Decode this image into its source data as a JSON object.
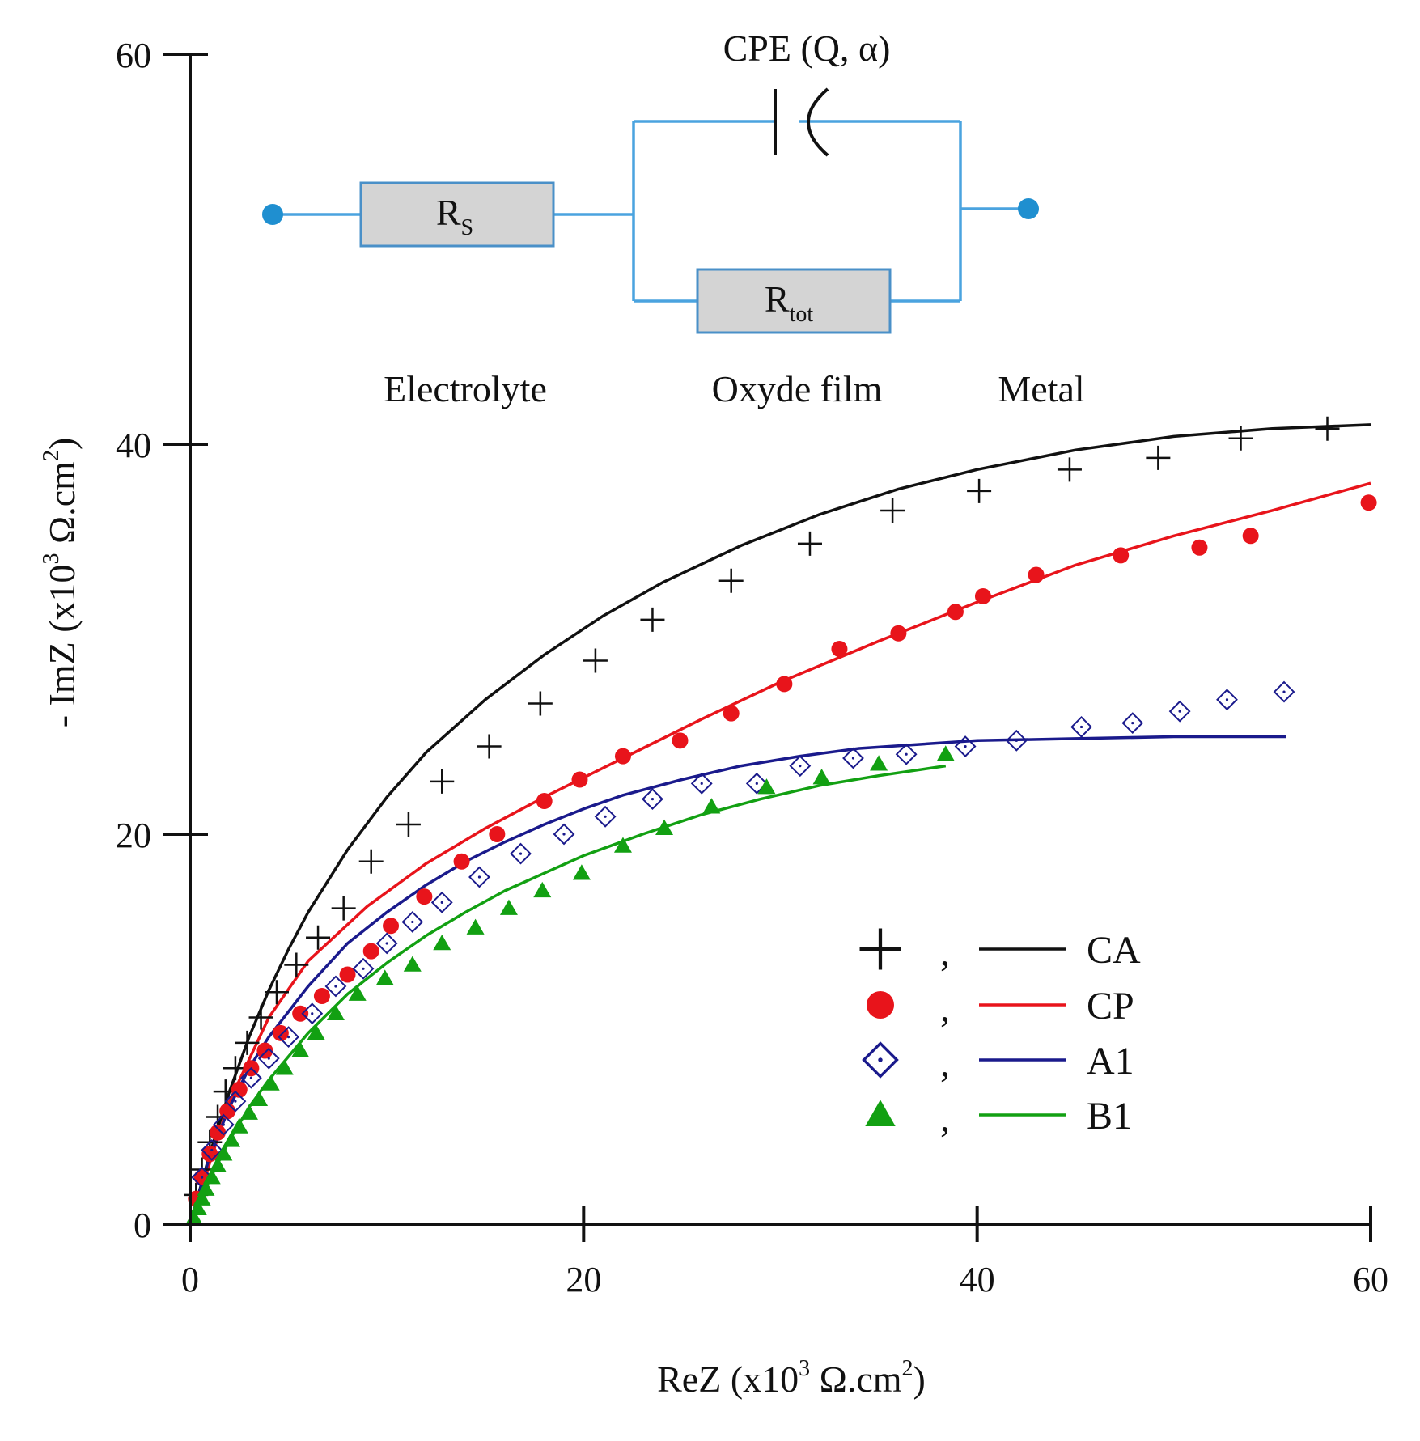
{
  "chart_data": {
    "type": "scatter",
    "title": "",
    "xlabel": "ReZ (x10^3 Ω.cm^2)",
    "ylabel": "- ImZ (x10^3 Ω.cm^2)",
    "xlabel_parts": {
      "pre": "ReZ (x10",
      "exp1": "3",
      "mid": " Ω.cm",
      "exp2": "2",
      "post": ")"
    },
    "ylabel_parts": {
      "pre": "- ImZ (x10",
      "exp1": "3",
      "mid": " Ω.cm",
      "exp2": "2",
      "post": ")"
    },
    "xlim": [
      0,
      60
    ],
    "ylim": [
      0,
      60
    ],
    "xticks": [
      0,
      20,
      40,
      60
    ],
    "yticks": [
      0,
      20,
      40,
      60
    ],
    "xtick_labels": [
      "0",
      "20",
      "40",
      "60"
    ],
    "ytick_labels": [
      "0",
      "20",
      "40",
      "60"
    ],
    "legend_position": "bottom-right",
    "legend_separator": ",",
    "series": [
      {
        "name": "CA",
        "marker": "plus",
        "color": "#111111",
        "points": [
          [
            0.3,
            1.5
          ],
          [
            0.6,
            2.8
          ],
          [
            1.0,
            4.2
          ],
          [
            1.4,
            5.5
          ],
          [
            1.8,
            6.8
          ],
          [
            2.3,
            8.0
          ],
          [
            2.9,
            9.3
          ],
          [
            3.6,
            10.6
          ],
          [
            4.4,
            11.9
          ],
          [
            5.4,
            13.3
          ],
          [
            6.5,
            14.7
          ],
          [
            7.8,
            16.2
          ],
          [
            9.2,
            18.6
          ],
          [
            11.1,
            20.5
          ],
          [
            12.8,
            22.7
          ],
          [
            15.2,
            24.5
          ],
          [
            17.8,
            26.7
          ],
          [
            20.6,
            28.9
          ],
          [
            23.5,
            31.0
          ],
          [
            27.5,
            33.0
          ],
          [
            31.5,
            34.9
          ],
          [
            35.7,
            36.6
          ],
          [
            40.1,
            37.6
          ],
          [
            44.7,
            38.7
          ],
          [
            49.2,
            39.3
          ],
          [
            53.4,
            40.3
          ],
          [
            57.8,
            40.8
          ]
        ],
        "fit": [
          [
            0,
            0
          ],
          [
            1,
            3.6
          ],
          [
            2,
            6.8
          ],
          [
            3,
            9.6
          ],
          [
            4,
            12.0
          ],
          [
            5,
            14.1
          ],
          [
            6,
            16.0
          ],
          [
            8,
            19.2
          ],
          [
            10,
            21.9
          ],
          [
            12,
            24.2
          ],
          [
            15,
            26.9
          ],
          [
            18,
            29.2
          ],
          [
            21,
            31.2
          ],
          [
            24,
            32.9
          ],
          [
            28,
            34.8
          ],
          [
            32,
            36.4
          ],
          [
            36,
            37.7
          ],
          [
            40,
            38.7
          ],
          [
            45,
            39.7
          ],
          [
            50,
            40.4
          ],
          [
            55,
            40.8
          ],
          [
            60,
            41.0
          ]
        ]
      },
      {
        "name": "CP",
        "marker": "circle",
        "color": "#e8141b",
        "points": [
          [
            0.3,
            1.3
          ],
          [
            0.6,
            2.4
          ],
          [
            1.0,
            3.6
          ],
          [
            1.4,
            4.7
          ],
          [
            1.9,
            5.8
          ],
          [
            2.5,
            6.9
          ],
          [
            3.1,
            8.0
          ],
          [
            3.8,
            8.9
          ],
          [
            4.6,
            9.8
          ],
          [
            5.6,
            10.8
          ],
          [
            6.7,
            11.7
          ],
          [
            8.0,
            12.8
          ],
          [
            9.2,
            14.0
          ],
          [
            10.2,
            15.3
          ],
          [
            11.9,
            16.8
          ],
          [
            13.8,
            18.6
          ],
          [
            15.6,
            20.0
          ],
          [
            18.0,
            21.7
          ],
          [
            19.8,
            22.8
          ],
          [
            22.0,
            24.0
          ],
          [
            24.9,
            24.8
          ],
          [
            27.5,
            26.2
          ],
          [
            30.2,
            27.7
          ],
          [
            33.0,
            29.5
          ],
          [
            36.0,
            30.3
          ],
          [
            38.9,
            31.4
          ],
          [
            40.3,
            32.2
          ],
          [
            43.0,
            33.3
          ],
          [
            47.3,
            34.3
          ],
          [
            51.3,
            34.7
          ],
          [
            53.9,
            35.3
          ],
          [
            59.9,
            37.0
          ]
        ],
        "fit": [
          [
            0,
            0
          ],
          [
            2,
            6.3
          ],
          [
            4,
            10.6
          ],
          [
            6,
            13.5
          ],
          [
            9,
            16.3
          ],
          [
            12,
            18.5
          ],
          [
            15,
            20.3
          ],
          [
            18,
            21.9
          ],
          [
            22,
            23.9
          ],
          [
            26,
            25.9
          ],
          [
            30,
            27.8
          ],
          [
            35,
            29.9
          ],
          [
            40,
            31.9
          ],
          [
            45,
            33.8
          ],
          [
            50,
            35.3
          ],
          [
            55,
            36.6
          ],
          [
            60,
            38.0
          ]
        ]
      },
      {
        "name": "A1",
        "marker": "diamond",
        "color": "#1a1a8c",
        "points": [
          [
            0.6,
            2.4
          ],
          [
            1.1,
            3.8
          ],
          [
            1.7,
            5.1
          ],
          [
            2.3,
            6.3
          ],
          [
            3.1,
            7.5
          ],
          [
            4.0,
            8.5
          ],
          [
            5.0,
            9.6
          ],
          [
            6.2,
            10.8
          ],
          [
            7.4,
            12.2
          ],
          [
            8.8,
            13.1
          ],
          [
            10.0,
            14.4
          ],
          [
            11.3,
            15.5
          ],
          [
            12.8,
            16.5
          ],
          [
            14.7,
            17.8
          ],
          [
            16.8,
            19.0
          ],
          [
            19.0,
            20.0
          ],
          [
            21.1,
            20.9
          ],
          [
            23.5,
            21.8
          ],
          [
            26.0,
            22.6
          ],
          [
            28.8,
            22.6
          ],
          [
            31.0,
            23.5
          ],
          [
            33.7,
            23.9
          ],
          [
            36.4,
            24.1
          ],
          [
            39.4,
            24.5
          ],
          [
            42.0,
            24.8
          ],
          [
            45.3,
            25.5
          ],
          [
            47.9,
            25.7
          ],
          [
            50.3,
            26.3
          ],
          [
            52.7,
            26.9
          ],
          [
            55.6,
            27.3
          ]
        ],
        "fit": [
          [
            0,
            0
          ],
          [
            1,
            3.5
          ],
          [
            2,
            6.0
          ],
          [
            3,
            8.0
          ],
          [
            4,
            9.6
          ],
          [
            6,
            12.2
          ],
          [
            8,
            14.4
          ],
          [
            10,
            16.0
          ],
          [
            12,
            17.4
          ],
          [
            14,
            18.6
          ],
          [
            16,
            19.6
          ],
          [
            18,
            20.5
          ],
          [
            20,
            21.3
          ],
          [
            22,
            22.0
          ],
          [
            25,
            22.8
          ],
          [
            28,
            23.5
          ],
          [
            31,
            24.0
          ],
          [
            34,
            24.4
          ],
          [
            37,
            24.6
          ],
          [
            40,
            24.8
          ],
          [
            45,
            24.9
          ],
          [
            50,
            25.0
          ],
          [
            55,
            25.0
          ],
          [
            55.7,
            25.0
          ]
        ]
      },
      {
        "name": "B1",
        "marker": "triangle",
        "color": "#12a012",
        "points": [
          [
            0.2,
            0.3
          ],
          [
            0.4,
            0.8
          ],
          [
            0.6,
            1.3
          ],
          [
            0.8,
            1.8
          ],
          [
            1.1,
            2.4
          ],
          [
            1.4,
            3.0
          ],
          [
            1.7,
            3.6
          ],
          [
            2.1,
            4.3
          ],
          [
            2.5,
            5.0
          ],
          [
            3.0,
            5.7
          ],
          [
            3.5,
            6.4
          ],
          [
            4.1,
            7.2
          ],
          [
            4.8,
            8.0
          ],
          [
            5.6,
            8.9
          ],
          [
            6.4,
            9.8
          ],
          [
            7.4,
            10.8
          ],
          [
            8.5,
            11.8
          ],
          [
            9.9,
            12.6
          ],
          [
            11.3,
            13.3
          ],
          [
            12.8,
            14.4
          ],
          [
            14.5,
            15.2
          ],
          [
            16.2,
            16.2
          ],
          [
            17.9,
            17.1
          ],
          [
            19.9,
            18.0
          ],
          [
            22.0,
            19.4
          ],
          [
            24.1,
            20.3
          ],
          [
            26.5,
            21.4
          ],
          [
            29.3,
            22.4
          ],
          [
            32.1,
            22.9
          ],
          [
            35.0,
            23.6
          ],
          [
            38.4,
            24.1
          ]
        ],
        "fit": [
          [
            0,
            0
          ],
          [
            1,
            2.3
          ],
          [
            2,
            4.3
          ],
          [
            3,
            6.0
          ],
          [
            4,
            7.4
          ],
          [
            6,
            9.8
          ],
          [
            8,
            11.8
          ],
          [
            10,
            13.4
          ],
          [
            12,
            14.8
          ],
          [
            14,
            16.0
          ],
          [
            16,
            17.1
          ],
          [
            18,
            18.0
          ],
          [
            20,
            18.9
          ],
          [
            23,
            20.0
          ],
          [
            26,
            21.0
          ],
          [
            29,
            21.8
          ],
          [
            32,
            22.5
          ],
          [
            35,
            23.0
          ],
          [
            38.4,
            23.5
          ]
        ]
      }
    ]
  },
  "circuit": {
    "cpe_label": "CPE (Q, α)",
    "rs": {
      "main": "R",
      "sub": "S"
    },
    "rtot": {
      "main": "R",
      "sub": "tot"
    },
    "regions": [
      "Electrolyte",
      "Oxyde film",
      "Metal"
    ],
    "wire_color": "#4aa3df",
    "node_color": "#1f8fd0"
  }
}
